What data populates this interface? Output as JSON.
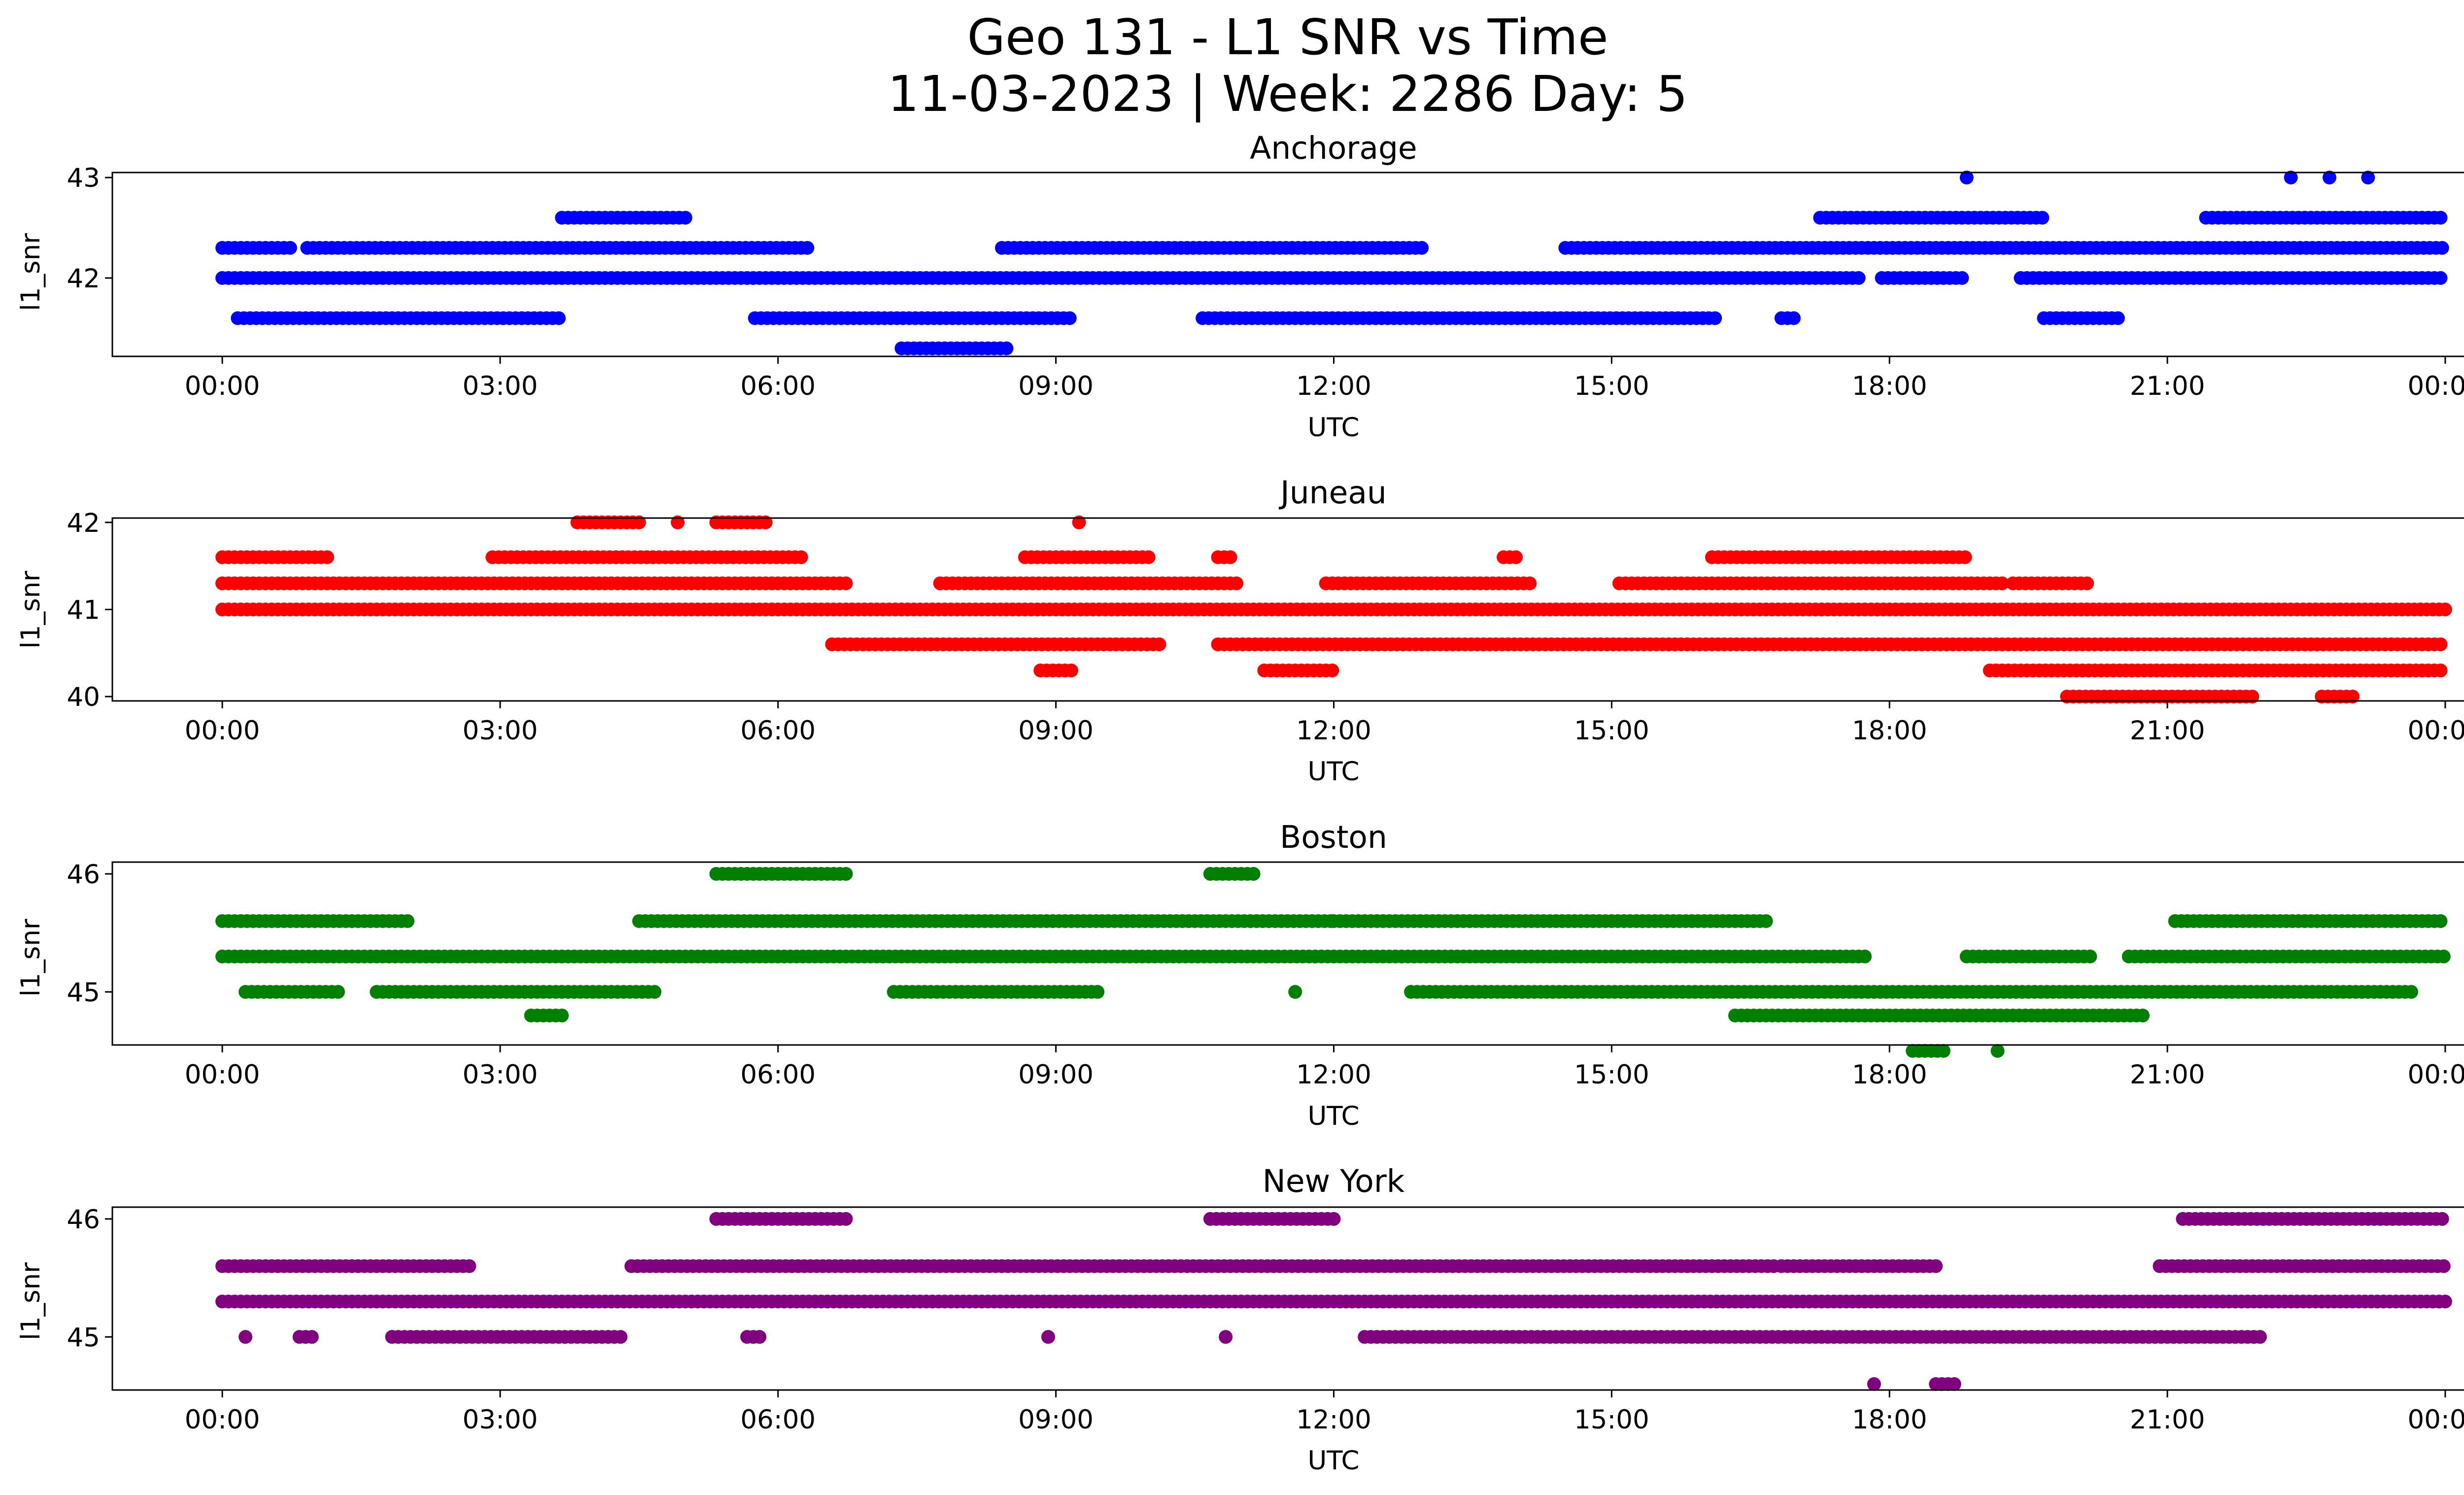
{
  "figure": {
    "title_line1": "Geo 131 - L1 SNR vs Time",
    "title_line2": "11-03-2023 | Week: 2286 Day: 5"
  },
  "chart_data": [
    {
      "type": "scatter",
      "title": "Anchorage",
      "xlabel": "UTC",
      "ylabel": "l1_snr",
      "color": "#0000ff",
      "xlim": [
        "00:00",
        "24:00"
      ],
      "ylim": [
        41.22,
        43.05
      ],
      "x_ticks": [
        "00:00",
        "03:00",
        "06:00",
        "09:00",
        "12:00",
        "15:00",
        "18:00",
        "21:00",
        "00:00"
      ],
      "y_ticks": [
        42,
        43
      ],
      "series": [
        {
          "points": [
            {
              "level": 42.0,
              "segments": [
                [
                  "00:00",
                  "17:40"
                ],
                [
                  "17:55",
                  "18:50"
                ],
                [
                  "19:25",
                  "24:00"
                ]
              ]
            },
            {
              "level": 42.3,
              "segments": [
                [
                  "00:00",
                  "00:45"
                ],
                [
                  "00:55",
                  "06:20"
                ],
                [
                  "08:25",
                  "13:00"
                ],
                [
                  "14:30",
                  "24:00"
                ]
              ]
            },
            {
              "level": 42.6,
              "segments": [
                [
                  "03:40",
                  "05:00"
                ],
                [
                  "17:15",
                  "19:40"
                ],
                [
                  "21:25",
                  "24:00"
                ]
              ]
            },
            {
              "level": 41.6,
              "segments": [
                [
                  "00:10",
                  "03:40"
                ],
                [
                  "05:45",
                  "09:10"
                ],
                [
                  "10:35",
                  "16:10"
                ],
                [
                  "16:50",
                  "17:00"
                ],
                [
                  "19:40",
                  "20:30"
                ]
              ]
            },
            {
              "level": 41.3,
              "segments": [
                [
                  "07:20",
                  "08:30"
                ]
              ]
            },
            {
              "level": 43.0,
              "segments": [
                [
                  "18:50",
                  "18:50"
                ],
                [
                  "22:20",
                  "22:20"
                ],
                [
                  "22:45",
                  "22:45"
                ],
                [
                  "23:10",
                  "23:10"
                ]
              ]
            }
          ]
        }
      ]
    },
    {
      "type": "scatter",
      "title": "Juneau",
      "xlabel": "UTC",
      "ylabel": "l1_snr",
      "color": "#ff0000",
      "xlim": [
        "00:00",
        "24:00"
      ],
      "ylim": [
        39.95,
        42.05
      ],
      "x_ticks": [
        "00:00",
        "03:00",
        "06:00",
        "09:00",
        "12:00",
        "15:00",
        "18:00",
        "21:00",
        "00:00"
      ],
      "y_ticks": [
        40,
        41,
        42
      ],
      "series": [
        {
          "points": [
            {
              "level": 41.0,
              "segments": [
                [
                  "00:00",
                  "24:00"
                ]
              ]
            },
            {
              "level": 41.3,
              "segments": [
                [
                  "00:00",
                  "06:45"
                ],
                [
                  "07:45",
                  "11:00"
                ],
                [
                  "11:55",
                  "14:10"
                ],
                [
                  "15:05",
                  "19:15"
                ],
                [
                  "19:20",
                  "20:10"
                ]
              ]
            },
            {
              "level": 41.6,
              "segments": [
                [
                  "00:00",
                  "01:10"
                ],
                [
                  "02:55",
                  "06:15"
                ],
                [
                  "08:40",
                  "10:00"
                ],
                [
                  "10:45",
                  "10:55"
                ],
                [
                  "13:50",
                  "14:00"
                ],
                [
                  "16:05",
                  "18:50"
                ]
              ]
            },
            {
              "level": 40.6,
              "segments": [
                [
                  "06:35",
                  "10:10"
                ],
                [
                  "10:45",
                  "24:00"
                ]
              ]
            },
            {
              "level": 40.3,
              "segments": [
                [
                  "08:50",
                  "09:10"
                ],
                [
                  "11:15",
                  "12:00"
                ],
                [
                  "19:05",
                  "24:00"
                ]
              ]
            },
            {
              "level": 42.0,
              "segments": [
                [
                  "03:50",
                  "04:30"
                ],
                [
                  "04:55",
                  "04:55"
                ],
                [
                  "05:20",
                  "05:55"
                ],
                [
                  "09:15",
                  "09:15"
                ]
              ]
            },
            {
              "level": 40.0,
              "segments": [
                [
                  "19:55",
                  "21:55"
                ],
                [
                  "22:40",
                  "23:00"
                ]
              ]
            }
          ]
        }
      ]
    },
    {
      "type": "scatter",
      "title": "Boston",
      "xlabel": "UTC",
      "ylabel": "l1_snr",
      "color": "#008000",
      "xlim": [
        "00:00",
        "24:00"
      ],
      "ylim": [
        44.55,
        46.1
      ],
      "x_ticks": [
        "00:00",
        "03:00",
        "06:00",
        "09:00",
        "12:00",
        "15:00",
        "18:00",
        "21:00",
        "00:00"
      ],
      "y_ticks": [
        45,
        46
      ],
      "series": [
        {
          "points": [
            {
              "level": 45.3,
              "segments": [
                [
                  "00:00",
                  "17:45"
                ],
                [
                  "18:50",
                  "20:10"
                ],
                [
                  "20:35",
                  "24:00"
                ]
              ]
            },
            {
              "level": 45.6,
              "segments": [
                [
                  "00:00",
                  "02:00"
                ],
                [
                  "04:30",
                  "12:00"
                ],
                [
                  "12:00",
                  "16:40"
                ],
                [
                  "21:05",
                  "24:00"
                ]
              ]
            },
            {
              "level": 45.0,
              "segments": [
                [
                  "00:15",
                  "01:15"
                ],
                [
                  "01:40",
                  "04:40"
                ],
                [
                  "07:15",
                  "09:30"
                ],
                [
                  "11:35",
                  "11:35"
                ],
                [
                  "12:50",
                  "23:40"
                ]
              ]
            },
            {
              "level": 44.8,
              "segments": [
                [
                  "03:20",
                  "03:40"
                ],
                [
                  "16:20",
                  "20:45"
                ]
              ]
            },
            {
              "level": 44.5,
              "segments": [
                [
                  "18:15",
                  "18:35"
                ],
                [
                  "19:10",
                  "19:10"
                ]
              ]
            },
            {
              "level": 46.0,
              "segments": [
                [
                  "05:20",
                  "06:45"
                ],
                [
                  "10:40",
                  "11:10"
                ]
              ]
            }
          ]
        }
      ]
    },
    {
      "type": "scatter",
      "title": "New York",
      "xlabel": "UTC",
      "ylabel": "l1_snr",
      "color": "#800080",
      "xlim": [
        "00:00",
        "24:00"
      ],
      "ylim": [
        44.55,
        46.1
      ],
      "x_ticks": [
        "00:00",
        "03:00",
        "06:00",
        "09:00",
        "12:00",
        "15:00",
        "18:00",
        "21:00",
        "00:00"
      ],
      "y_ticks": [
        45,
        46
      ],
      "series": [
        {
          "points": [
            {
              "level": 45.3,
              "segments": [
                [
                  "00:00",
                  "24:00"
                ]
              ]
            },
            {
              "level": 45.6,
              "segments": [
                [
                  "00:00",
                  "02:40"
                ],
                [
                  "04:25",
                  "16:45"
                ],
                [
                  "16:50",
                  "18:30"
                ],
                [
                  "20:55",
                  "24:00"
                ]
              ]
            },
            {
              "level": 45.0,
              "segments": [
                [
                  "00:15",
                  "00:15"
                ],
                [
                  "00:50",
                  "01:00"
                ],
                [
                  "01:50",
                  "04:20"
                ],
                [
                  "05:40",
                  "05:50"
                ],
                [
                  "08:55",
                  "08:55"
                ],
                [
                  "10:50",
                  "10:50"
                ],
                [
                  "12:20",
                  "22:00"
                ]
              ]
            },
            {
              "level": 46.0,
              "segments": [
                [
                  "05:20",
                  "06:45"
                ],
                [
                  "10:40",
                  "12:00"
                ],
                [
                  "21:10",
                  "24:00"
                ]
              ]
            },
            {
              "level": 44.6,
              "segments": [
                [
                  "17:50",
                  "17:50"
                ],
                [
                  "18:30",
                  "18:45"
                ]
              ]
            }
          ]
        }
      ]
    }
  ]
}
